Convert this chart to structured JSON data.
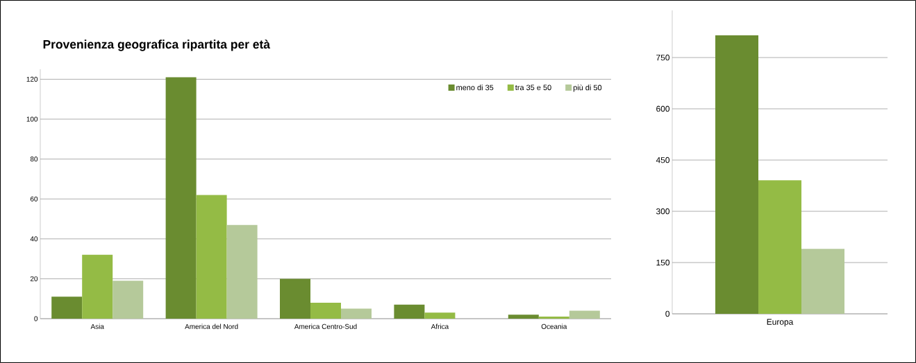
{
  "chart_data": [
    {
      "type": "bar",
      "title": "Provenienza geografica ripartita per età",
      "categories": [
        "Asia",
        "America del Nord",
        "America Centro-Sud",
        "Africa",
        "Oceania"
      ],
      "series": [
        {
          "name": "meno di 35",
          "color": "#6a8c30",
          "values": [
            11,
            121,
            20,
            7,
            2
          ]
        },
        {
          "name": "tra 35 e 50",
          "color": "#94bb45",
          "values": [
            32,
            62,
            8,
            3,
            1
          ]
        },
        {
          "name": "più di 50",
          "color": "#b5c99a",
          "values": [
            19,
            47,
            5,
            0,
            4
          ]
        }
      ],
      "ylim": [
        0,
        125
      ],
      "yticks": [
        0,
        20,
        40,
        60,
        80,
        100,
        120
      ],
      "grid": "y",
      "legend": "top right"
    },
    {
      "type": "bar",
      "categories": [
        "Europa"
      ],
      "series": [
        {
          "color": "#6a8c30",
          "values": [
            815
          ]
        },
        {
          "color": "#94bb45",
          "values": [
            391
          ]
        },
        {
          "color": "#b5c99a",
          "values": [
            190
          ]
        }
      ],
      "ylim": [
        0,
        888
      ],
      "yticks": [
        0,
        150,
        300,
        450,
        600,
        750
      ],
      "grid": "y"
    }
  ]
}
